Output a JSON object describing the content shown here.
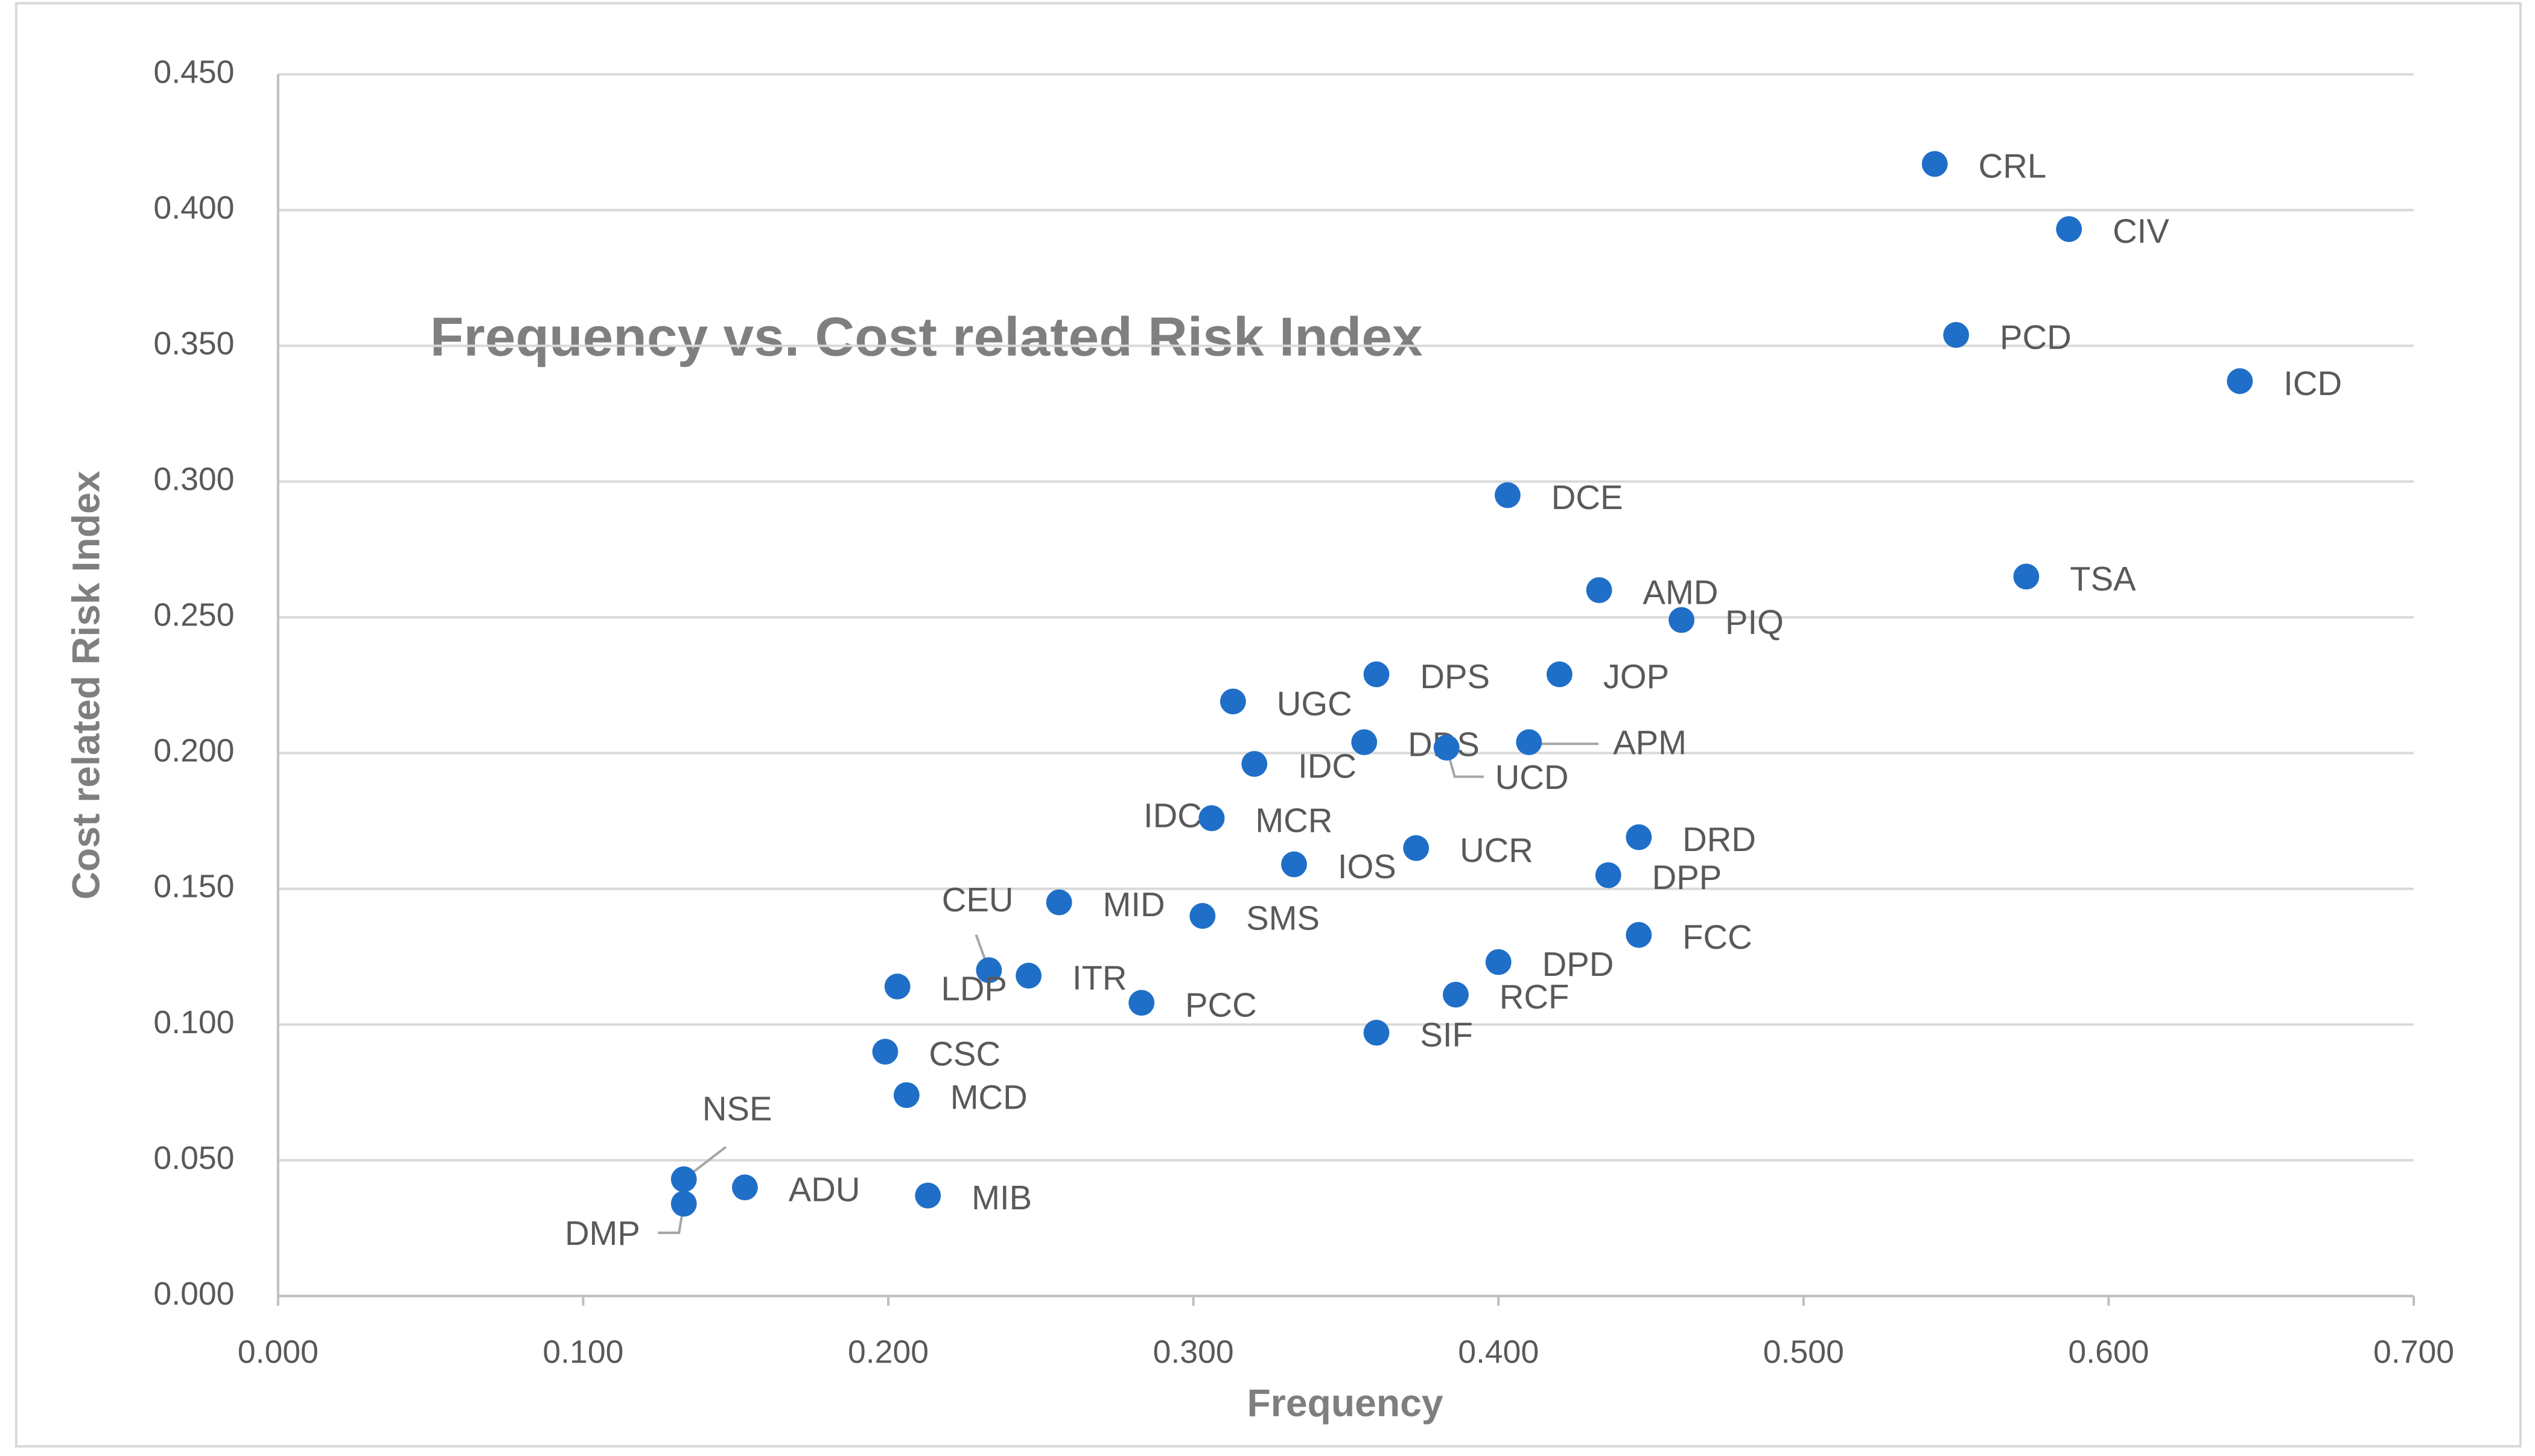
{
  "chart_data": {
    "type": "scatter",
    "title": "Frequency vs. Cost related Risk Index",
    "x_label": "Frequency",
    "y_label": "Cost related Risk Index",
    "xlim": [
      0,
      0.7
    ],
    "ylim": [
      0,
      0.45
    ],
    "xticks": [
      {
        "value": 0,
        "label": "0.000"
      },
      {
        "value": 0.1,
        "label": "0.100"
      },
      {
        "value": 0.2,
        "label": "0.200"
      },
      {
        "value": 0.3,
        "label": "0.300"
      },
      {
        "value": 0.4,
        "label": "0.400"
      },
      {
        "value": 0.5,
        "label": "0.500"
      },
      {
        "value": 0.6,
        "label": "0.600"
      },
      {
        "value": 0.7,
        "label": "0.700"
      }
    ],
    "yticks": [
      {
        "value": 0,
        "label": "0.000"
      },
      {
        "value": 0.05,
        "label": "0.050"
      },
      {
        "value": 0.1,
        "label": "0.100"
      },
      {
        "value": 0.15,
        "label": "0.150"
      },
      {
        "value": 0.2,
        "label": "0.200"
      },
      {
        "value": 0.25,
        "label": "0.250"
      },
      {
        "value": 0.3,
        "label": "0.300"
      },
      {
        "value": 0.35,
        "label": "0.350"
      },
      {
        "value": 0.4,
        "label": "0.400"
      },
      {
        "value": 0.45,
        "label": "0.450"
      }
    ],
    "grid": true,
    "x": [
      0.543,
      0.587,
      0.55,
      0.643,
      0.573,
      0.403,
      0.433,
      0.46,
      0.36,
      0.42,
      0.313,
      0.356,
      0.383,
      0.41,
      0.32,
      0.306,
      0.306,
      0.373,
      0.333,
      0.446,
      0.436,
      0.256,
      0.303,
      0.446,
      0.233,
      0.246,
      0.203,
      0.4,
      0.283,
      0.386,
      0.36,
      0.199,
      0.206,
      0.133,
      0.153,
      0.213,
      0.133
    ],
    "series": [
      {
        "color": "#1f6fc8",
        "values": [
          0.417,
          0.393,
          0.354,
          0.337,
          0.265,
          0.295,
          0.26,
          0.249,
          0.229,
          0.229,
          0.219,
          0.204,
          0.202,
          0.204,
          0.196,
          0.176,
          0.176,
          0.165,
          0.159,
          0.169,
          0.155,
          0.145,
          0.14,
          0.133,
          0.12,
          0.118,
          0.114,
          0.123,
          0.108,
          0.111,
          0.097,
          0.09,
          0.074,
          0.043,
          0.04,
          0.037,
          0.034
        ]
      }
    ],
    "point_labels": [
      "CRL",
      "CIV",
      "PCD",
      "ICD",
      "TSA",
      "DCE",
      "AMD",
      "PIQ",
      "DPS",
      "JOP",
      "UGC",
      "DDS",
      "UCD",
      "APM",
      "IDC",
      "IDC",
      "MCR",
      "UCR",
      "IOS",
      "DRD",
      "DPP",
      "MID",
      "SMS",
      "FCC",
      "CEU",
      "ITR",
      "LDP",
      "DPD",
      "PCC",
      "RCF",
      "SIF",
      "CSC",
      "MCD",
      "NSE",
      "ADU",
      "MIB",
      "DMP"
    ]
  }
}
